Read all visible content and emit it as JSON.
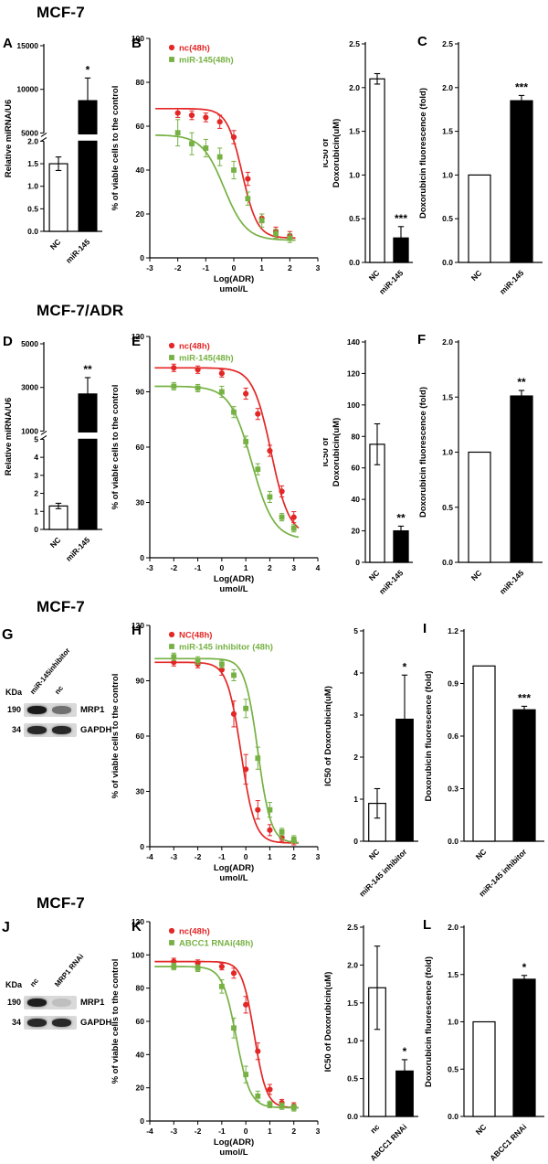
{
  "sections": [
    {
      "title": "MCF-7"
    },
    {
      "title": "MCF-7/ADR"
    },
    {
      "title": "MCF-7"
    },
    {
      "title": "MCF-7"
    }
  ],
  "colors": {
    "nc_red": "#e32726",
    "mir_green": "#76b143",
    "bar_white": "#ffffff",
    "bar_black": "#000000"
  },
  "chart_data": [
    {
      "id": "A",
      "type": "bar",
      "letter": "A",
      "ylabel": "Relative miRNA/U6",
      "categories": [
        "NC",
        "miR-145"
      ],
      "values": [
        1.5,
        8700
      ],
      "errors": [
        0.15,
        2600
      ],
      "sig": [
        null,
        "*"
      ],
      "bar_colors": [
        "#ffffff",
        "#000000"
      ],
      "axis": {
        "split": true,
        "top": {
          "lim": [
            5000,
            15000
          ],
          "ticks": [
            "5000",
            "10000",
            "15000"
          ]
        },
        "bottom": {
          "lim": [
            0,
            2
          ],
          "ticks": [
            "0.0",
            "0.5",
            "1.0",
            "1.5",
            "2.0"
          ]
        }
      }
    },
    {
      "id": "B",
      "type": "dose",
      "letter": "B",
      "ylabel": "% of viable cells to the control",
      "xlabel_lines": [
        "Log(ADR)",
        "umol/L"
      ],
      "xlim": [
        -3,
        3
      ],
      "ylim": [
        0,
        100
      ],
      "xticks": [
        "-3",
        "-2",
        "-1",
        "0",
        "1",
        "2",
        "3"
      ],
      "yticks": [
        "0",
        "20",
        "40",
        "60",
        "80",
        "100"
      ],
      "legend_pos": "top",
      "series": [
        {
          "name": "nc(48h)",
          "color": "#e32726",
          "marker": "circle",
          "x": [
            -2,
            -1.5,
            -1,
            -0.5,
            0,
            0.5,
            1,
            1.5,
            2
          ],
          "y": [
            66,
            65,
            64,
            62,
            55,
            36,
            18,
            12,
            10
          ],
          "err": [
            2,
            2,
            2,
            3,
            3,
            3,
            2,
            2,
            2
          ],
          "curve": {
            "top": 68,
            "bottom": 9,
            "logec50": 0.3,
            "hill": 1.6
          }
        },
        {
          "name": "miR-145(48h)",
          "color": "#76b143",
          "marker": "square",
          "x": [
            -2,
            -1.5,
            -1,
            -0.5,
            0,
            0.5,
            1,
            1.5,
            2
          ],
          "y": [
            57,
            52,
            50,
            46,
            40,
            27,
            17,
            11,
            9
          ],
          "err": [
            6,
            5,
            4,
            4,
            4,
            3,
            3,
            2,
            2
          ],
          "curve": {
            "top": 56,
            "bottom": 8,
            "logec50": -0.35,
            "hill": 1.1
          }
        }
      ]
    },
    {
      "id": "B_IC50",
      "type": "bar",
      "ylabel": "IC50 of\nDoxorubicin(uM)",
      "categories": [
        "NC",
        "miR-145"
      ],
      "values": [
        2.1,
        0.28
      ],
      "errors": [
        0.06,
        0.13
      ],
      "sig": [
        null,
        "***"
      ],
      "bar_colors": [
        "#ffffff",
        "#000000"
      ],
      "axis": {
        "lim": [
          0,
          2.5
        ],
        "ticks": [
          "0.0",
          "0.5",
          "1.0",
          "1.5",
          "2.0",
          "2.5"
        ]
      }
    },
    {
      "id": "C",
      "type": "bar",
      "letter": "C",
      "ylabel": "Doxorubicin fluorescence (fold)",
      "categories": [
        "NC",
        "miR-145"
      ],
      "values": [
        1.0,
        1.85
      ],
      "errors": [
        0,
        0.06
      ],
      "sig": [
        null,
        "***"
      ],
      "bar_colors": [
        "#ffffff",
        "#000000"
      ],
      "axis": {
        "lim": [
          0,
          2.5
        ],
        "ticks": [
          "0.0",
          "0.5",
          "1.0",
          "1.5",
          "2.0",
          "2.5"
        ]
      }
    },
    {
      "id": "D",
      "type": "bar",
      "letter": "D",
      "ylabel": "Relative miRNA/U6",
      "categories": [
        "NC",
        "miR-145"
      ],
      "values": [
        1.3,
        2700
      ],
      "errors": [
        0.15,
        750
      ],
      "sig": [
        null,
        "**"
      ],
      "bar_colors": [
        "#ffffff",
        "#000000"
      ],
      "axis": {
        "split": true,
        "top": {
          "lim": [
            1000,
            5000
          ],
          "ticks": [
            "1000",
            "3000",
            "5000"
          ]
        },
        "bottom": {
          "lim": [
            0,
            5
          ],
          "ticks": [
            "0",
            "1",
            "2",
            "3",
            "4",
            "5"
          ]
        }
      }
    },
    {
      "id": "E",
      "type": "dose",
      "letter": "E",
      "ylabel": "% of viable cells to the control",
      "xlabel_lines": [
        "Log(ADR)",
        "umol/L"
      ],
      "xlim": [
        -3,
        4
      ],
      "ylim": [
        0,
        120
      ],
      "xticks": [
        "-3",
        "-2",
        "-1",
        "0",
        "1",
        "2",
        "3",
        "4"
      ],
      "yticks": [
        "0",
        "30",
        "60",
        "90",
        "120"
      ],
      "legend_pos": "top",
      "series": [
        {
          "name": "nc(48h)",
          "color": "#e32726",
          "marker": "circle",
          "x": [
            -2,
            -1,
            0,
            1,
            1.5,
            2,
            2.5,
            3
          ],
          "y": [
            103,
            102,
            100,
            89,
            78,
            58,
            36,
            22
          ],
          "err": [
            2,
            2,
            2,
            3,
            3,
            3,
            3,
            3
          ],
          "curve": {
            "top": 103,
            "bottom": 12,
            "logec50": 2.05,
            "hill": 1.15
          }
        },
        {
          "name": "miR-145(48h)",
          "color": "#76b143",
          "marker": "square",
          "x": [
            -2,
            -1,
            0,
            0.5,
            1,
            1.5,
            2,
            2.5,
            3
          ],
          "y": [
            93,
            92,
            90,
            79,
            63,
            48,
            33,
            22,
            16
          ],
          "err": [
            2,
            2,
            3,
            3,
            3,
            3,
            3,
            2,
            2
          ],
          "curve": {
            "top": 93,
            "bottom": 10,
            "logec50": 1.25,
            "hill": 0.95
          }
        }
      ]
    },
    {
      "id": "E_IC50",
      "type": "bar",
      "ylabel": "IC50 of\nDoxorubicin(uM)",
      "categories": [
        "NC",
        "miR-145"
      ],
      "values": [
        75,
        20
      ],
      "errors": [
        13,
        3
      ],
      "sig": [
        null,
        "**"
      ],
      "bar_colors": [
        "#ffffff",
        "#000000"
      ],
      "axis": {
        "lim": [
          0,
          140
        ],
        "ticks": [
          "0",
          "20",
          "40",
          "60",
          "80",
          "100",
          "120",
          "140"
        ]
      }
    },
    {
      "id": "F",
      "type": "bar",
      "letter": "F",
      "ylabel": "Doxorubicin fluorescence (fold)",
      "categories": [
        "NC",
        "miR-145"
      ],
      "values": [
        1.0,
        1.51
      ],
      "errors": [
        0,
        0.05
      ],
      "sig": [
        null,
        "**"
      ],
      "bar_colors": [
        "#ffffff",
        "#000000"
      ],
      "axis": {
        "lim": [
          0,
          2
        ],
        "ticks": [
          "0.0",
          "0.5",
          "1.0",
          "1.5",
          "2.0"
        ]
      }
    },
    {
      "id": "G",
      "type": "blot",
      "letter": "G",
      "kda_label": "KDa",
      "lane_labels": [
        "miR-145inhibitor",
        "nc"
      ],
      "rows": [
        {
          "kda": "190",
          "label": "MRP1",
          "bands": [
            0.92,
            0.5
          ]
        },
        {
          "kda": "34",
          "label": "GAPDH",
          "bands": [
            0.85,
            0.85
          ]
        }
      ]
    },
    {
      "id": "H",
      "type": "dose",
      "letter": "H",
      "ylabel": "% of viable cells to the control",
      "xlabel_lines": [
        "Log(ADR)",
        "umol/L"
      ],
      "xlim": [
        -4,
        3
      ],
      "ylim": [
        0,
        120
      ],
      "xticks": [
        "-4",
        "-3",
        "-2",
        "-1",
        "0",
        "1",
        "2",
        "3"
      ],
      "yticks": [
        "0",
        "30",
        "60",
        "90",
        "120"
      ],
      "legend_pos": "top",
      "series": [
        {
          "name": "NC(48h)",
          "color": "#e32726",
          "marker": "circle",
          "x": [
            -3,
            -2,
            -1,
            -0.5,
            0,
            0.5,
            1,
            1.5,
            2
          ],
          "y": [
            100,
            99,
            96,
            72,
            42,
            20,
            9,
            5,
            3
          ],
          "err": [
            2,
            2,
            3,
            7,
            8,
            5,
            3,
            2,
            2
          ],
          "curve": {
            "top": 100,
            "bottom": 2,
            "logec50": -0.2,
            "hill": 1.5
          }
        },
        {
          "name": "miR-145 inhibitor (48h)",
          "color": "#76b143",
          "marker": "square",
          "x": [
            -3,
            -2,
            -1,
            -0.5,
            0,
            0.5,
            1,
            1.5,
            2
          ],
          "y": [
            103,
            101,
            99,
            93,
            75,
            48,
            20,
            8,
            4
          ],
          "err": [
            2,
            2,
            2,
            3,
            5,
            6,
            4,
            2,
            2
          ],
          "curve": {
            "top": 102,
            "bottom": 2,
            "logec50": 0.5,
            "hill": 1.6
          }
        }
      ]
    },
    {
      "id": "H_IC50",
      "type": "bar",
      "ylabel": "IC50 of Doxorubicin(uM)",
      "categories": [
        "NC",
        "miR-145 inhibitor"
      ],
      "values": [
        0.9,
        2.9
      ],
      "errors": [
        0.35,
        1.05
      ],
      "sig": [
        null,
        "*"
      ],
      "bar_colors": [
        "#ffffff",
        "#000000"
      ],
      "axis": {
        "lim": [
          0,
          5
        ],
        "ticks": [
          "0",
          "1",
          "2",
          "3",
          "4",
          "5"
        ]
      }
    },
    {
      "id": "I",
      "type": "bar",
      "letter": "I",
      "ylabel": "Doxorubicin fluorescence (fold)",
      "categories": [
        "NC",
        "miR-145 inhibitor"
      ],
      "values": [
        1.0,
        0.75
      ],
      "errors": [
        0,
        0.02
      ],
      "sig": [
        null,
        "***"
      ],
      "bar_colors": [
        "#ffffff",
        "#000000"
      ],
      "axis": {
        "lim": [
          0,
          1.2
        ],
        "ticks": [
          "0.0",
          "0.3",
          "0.6",
          "0.9",
          "1.2"
        ]
      }
    },
    {
      "id": "J",
      "type": "blot",
      "letter": "J",
      "kda_label": "KDa",
      "lane_labels": [
        "nc",
        "MRP1 RNAi"
      ],
      "rows": [
        {
          "kda": "190",
          "label": "MRP1",
          "bands": [
            0.9,
            0.12
          ]
        },
        {
          "kda": "34",
          "label": "GAPDH",
          "bands": [
            0.85,
            0.85
          ]
        }
      ]
    },
    {
      "id": "K",
      "type": "dose",
      "letter": "K",
      "ylabel": "% of viable cells to the control",
      "xlabel_lines": [
        "Log(ADR)",
        "umol/L"
      ],
      "xlim": [
        -4,
        3
      ],
      "ylim": [
        0,
        120
      ],
      "xticks": [
        "-4",
        "-3",
        "-2",
        "-1",
        "0",
        "1",
        "2",
        "3"
      ],
      "yticks": [
        "0",
        "20",
        "40",
        "60",
        "80",
        "100",
        "120"
      ],
      "legend_pos": "top",
      "series": [
        {
          "name": "nc(48h)",
          "color": "#e32726",
          "marker": "circle",
          "x": [
            -3,
            -2,
            -1,
            -0.5,
            0,
            0.5,
            1,
            1.5,
            2
          ],
          "y": [
            96,
            95,
            93,
            89,
            70,
            42,
            19,
            11,
            9
          ],
          "err": [
            2,
            2,
            2,
            3,
            5,
            5,
            3,
            2,
            2
          ],
          "curve": {
            "top": 96,
            "bottom": 8,
            "logec50": 0.35,
            "hill": 1.7
          }
        },
        {
          "name": "ABCC1 RNAi(48h)",
          "color": "#76b143",
          "marker": "square",
          "x": [
            -3,
            -2,
            -1,
            -0.5,
            0,
            0.5,
            1,
            1.5,
            2
          ],
          "y": [
            93,
            92,
            81,
            56,
            28,
            15,
            10,
            9,
            8
          ],
          "err": [
            2,
            2,
            4,
            6,
            5,
            3,
            2,
            2,
            2
          ],
          "curve": {
            "top": 93,
            "bottom": 8,
            "logec50": -0.4,
            "hill": 1.5
          }
        }
      ]
    },
    {
      "id": "K_IC50",
      "type": "bar",
      "ylabel": "IC50 of Doxorubicin(uM)",
      "categories": [
        "nc",
        "ABCC1 RNAi"
      ],
      "values": [
        1.7,
        0.6
      ],
      "errors": [
        0.55,
        0.15
      ],
      "sig": [
        null,
        "*"
      ],
      "bar_colors": [
        "#ffffff",
        "#000000"
      ],
      "axis": {
        "lim": [
          0,
          2.5
        ],
        "ticks": [
          "0.0",
          "0.5",
          "1.0",
          "1.5",
          "2.0",
          "2.5"
        ]
      }
    },
    {
      "id": "L",
      "type": "bar",
      "letter": "L",
      "ylabel": "Doxorubicin fluorescence (fold)",
      "categories": [
        "NC",
        "ABCC1 RNAi"
      ],
      "values": [
        1.0,
        1.45
      ],
      "errors": [
        0,
        0.04
      ],
      "sig": [
        null,
        "*"
      ],
      "bar_colors": [
        "#ffffff",
        "#000000"
      ],
      "axis": {
        "lim": [
          0,
          2
        ],
        "ticks": [
          "0.0",
          "0.5",
          "1.0",
          "1.5",
          "2.0"
        ]
      }
    }
  ]
}
